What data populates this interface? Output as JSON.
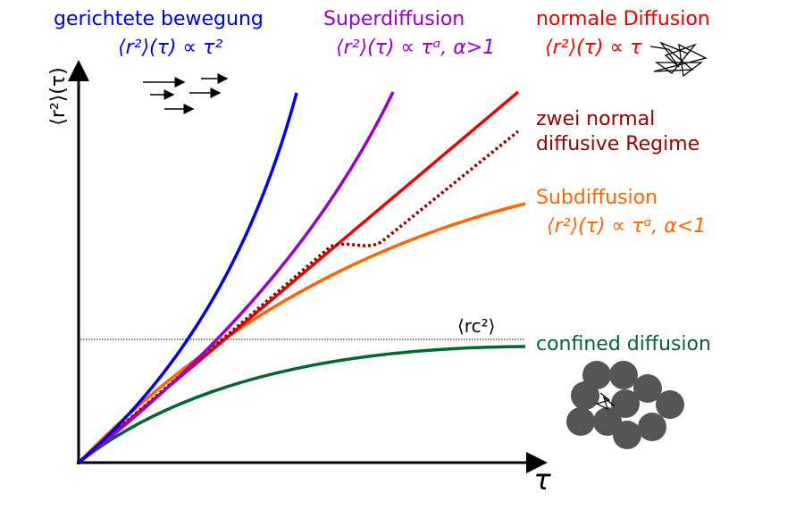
{
  "labels": {
    "directed": {
      "title": "gerichtete bewegung",
      "formula": "⟨r²⟩(τ) ∝ τ²"
    },
    "super": {
      "title": "Superdiffusion",
      "formula": "⟨r²⟩(τ) ∝ τᵅ, α>1"
    },
    "normal": {
      "title": "normale Diffusion",
      "formula": "⟨r²⟩(τ) ∝ τ"
    },
    "two_regimes": [
      "zwei normal",
      "diffusive Regime"
    ],
    "sub": {
      "title": "Subdiffusion",
      "formula": "⟨r²⟩(τ) ∝ τᵅ, α<1"
    },
    "confined": "confined diffusion",
    "plateau": "⟨rc²⟩"
  },
  "axes": {
    "y_label": "⟨r²⟩(τ)",
    "x_label": "τ"
  }
}
